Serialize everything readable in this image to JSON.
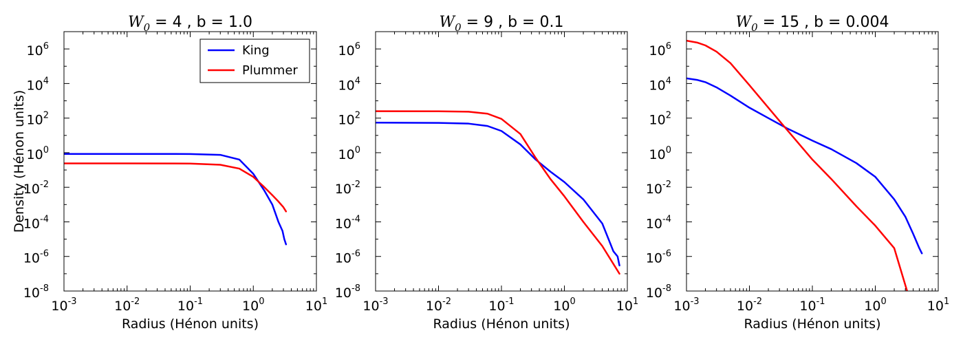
{
  "chart_data": [
    {
      "type": "line",
      "title": {
        "symbol": "W",
        "subscript": "0",
        "rest": " = 4 , b = 1.0"
      },
      "xlabel": "Radius (Hénon units)",
      "ylabel": "Density (Hénon units)",
      "xscale": "log",
      "yscale": "log",
      "xlim": [
        0.001,
        10
      ],
      "ylim": [
        1e-08,
        10000000.0
      ],
      "x_ticks": [
        {
          "base": "10",
          "exp": "-3",
          "value": 0.001
        },
        {
          "base": "10",
          "exp": "-2",
          "value": 0.01
        },
        {
          "base": "10",
          "exp": "-1",
          "value": 0.1
        },
        {
          "base": "10",
          "exp": "0",
          "value": 1
        },
        {
          "base": "10",
          "exp": "1",
          "value": 10
        }
      ],
      "y_ticks": [
        {
          "base": "10",
          "exp": "-8",
          "value": 1e-08
        },
        {
          "base": "10",
          "exp": "-6",
          "value": 1e-06
        },
        {
          "base": "10",
          "exp": "-4",
          "value": 0.0001
        },
        {
          "base": "10",
          "exp": "-2",
          "value": 0.01
        },
        {
          "base": "10",
          "exp": "0",
          "value": 1
        },
        {
          "base": "10",
          "exp": "2",
          "value": 100
        },
        {
          "base": "10",
          "exp": "4",
          "value": 10000
        },
        {
          "base": "10",
          "exp": "6",
          "value": 1000000
        }
      ],
      "legend": {
        "position": "top-right",
        "entries": [
          "King",
          "Plummer"
        ]
      },
      "series": [
        {
          "name": "King",
          "color": "#0000ff",
          "x": [
            0.001,
            0.01,
            0.1,
            0.3,
            0.6,
            1.0,
            1.5,
            2.0,
            2.5,
            2.9,
            3.1,
            3.3
          ],
          "y": [
            0.85,
            0.85,
            0.84,
            0.75,
            0.4,
            0.06,
            0.0063,
            0.001,
            0.0001,
            3e-05,
            1e-05,
            5e-06
          ]
        },
        {
          "name": "Plummer",
          "color": "#ff0000",
          "x": [
            0.001,
            0.01,
            0.1,
            0.3,
            0.6,
            1.0,
            1.5,
            2.0,
            2.5,
            3.0,
            3.3
          ],
          "y": [
            0.24,
            0.24,
            0.235,
            0.2,
            0.12,
            0.04,
            0.01,
            0.0035,
            0.0015,
            0.0007,
            0.0004
          ]
        }
      ]
    },
    {
      "type": "line",
      "title": {
        "symbol": "W",
        "subscript": "0",
        "rest": " = 9 , b = 0.1"
      },
      "xlabel": "Radius (Hénon units)",
      "ylabel": "",
      "xscale": "log",
      "yscale": "log",
      "xlim": [
        0.001,
        10
      ],
      "ylim": [
        1e-08,
        10000000.0
      ],
      "x_ticks": [
        {
          "base": "10",
          "exp": "-3",
          "value": 0.001
        },
        {
          "base": "10",
          "exp": "-2",
          "value": 0.01
        },
        {
          "base": "10",
          "exp": "-1",
          "value": 0.1
        },
        {
          "base": "10",
          "exp": "0",
          "value": 1
        },
        {
          "base": "10",
          "exp": "1",
          "value": 10
        }
      ],
      "y_ticks": [
        {
          "base": "10",
          "exp": "-8",
          "value": 1e-08
        },
        {
          "base": "10",
          "exp": "-6",
          "value": 1e-06
        },
        {
          "base": "10",
          "exp": "-4",
          "value": 0.0001
        },
        {
          "base": "10",
          "exp": "-2",
          "value": 0.01
        },
        {
          "base": "10",
          "exp": "0",
          "value": 1
        },
        {
          "base": "10",
          "exp": "2",
          "value": 100
        },
        {
          "base": "10",
          "exp": "4",
          "value": 10000
        },
        {
          "base": "10",
          "exp": "6",
          "value": 1000000
        }
      ],
      "series": [
        {
          "name": "King",
          "color": "#0000ff",
          "x": [
            0.001,
            0.01,
            0.03,
            0.06,
            0.1,
            0.2,
            0.35,
            0.6,
            1.0,
            2.0,
            4.0,
            6.0,
            7.0,
            7.5
          ],
          "y": [
            55,
            53,
            48,
            35,
            18,
            3,
            0.4,
            0.08,
            0.02,
            0.002,
            8e-05,
            2e-06,
            1e-06,
            3e-07
          ]
        },
        {
          "name": "Plummer",
          "color": "#ff0000",
          "x": [
            0.001,
            0.01,
            0.03,
            0.06,
            0.1,
            0.2,
            0.35,
            0.6,
            1.0,
            2.0,
            4.0,
            7.5
          ],
          "y": [
            250,
            248,
            235,
            180,
            90,
            12,
            0.5,
            0.03,
            0.003,
            0.0001,
            4e-06,
            1e-07
          ]
        }
      ]
    },
    {
      "type": "line",
      "title": {
        "symbol": "W",
        "subscript": "0",
        "rest": " = 15 , b = 0.004"
      },
      "xlabel": "Radius (Hénon units)",
      "ylabel": "",
      "xscale": "log",
      "yscale": "log",
      "xlim": [
        0.001,
        10
      ],
      "ylim": [
        1e-08,
        10000000.0
      ],
      "x_ticks": [
        {
          "base": "10",
          "exp": "-3",
          "value": 0.001
        },
        {
          "base": "10",
          "exp": "-2",
          "value": 0.01
        },
        {
          "base": "10",
          "exp": "-1",
          "value": 0.1
        },
        {
          "base": "10",
          "exp": "0",
          "value": 1
        },
        {
          "base": "10",
          "exp": "1",
          "value": 10
        }
      ],
      "y_ticks": [
        {
          "base": "10",
          "exp": "-8",
          "value": 1e-08
        },
        {
          "base": "10",
          "exp": "-6",
          "value": 1e-06
        },
        {
          "base": "10",
          "exp": "-4",
          "value": 0.0001
        },
        {
          "base": "10",
          "exp": "-2",
          "value": 0.01
        },
        {
          "base": "10",
          "exp": "0",
          "value": 1
        },
        {
          "base": "10",
          "exp": "2",
          "value": 100
        },
        {
          "base": "10",
          "exp": "4",
          "value": 10000
        },
        {
          "base": "10",
          "exp": "6",
          "value": 1000000
        }
      ],
      "series": [
        {
          "name": "King",
          "color": "#0000ff",
          "x": [
            0.001,
            0.0015,
            0.002,
            0.003,
            0.005,
            0.01,
            0.02,
            0.04,
            0.1,
            0.2,
            0.5,
            1.0,
            2.0,
            3.0,
            4.0,
            5.0,
            5.5
          ],
          "y": [
            20000,
            16000,
            12000,
            6000,
            2000,
            400,
            100,
            25,
            5,
            1.6,
            0.25,
            0.04,
            0.002,
            0.0002,
            2e-05,
            3e-06,
            1.5e-06
          ]
        },
        {
          "name": "Plummer",
          "color": "#ff0000",
          "x": [
            0.001,
            0.0015,
            0.002,
            0.003,
            0.005,
            0.01,
            0.02,
            0.04,
            0.1,
            0.2,
            0.5,
            1.0,
            2.0,
            3.2
          ],
          "y": [
            3000000,
            2300000,
            1600000,
            700000,
            150000,
            8000,
            400,
            20,
            0.4,
            0.03,
            0.0008,
            6e-05,
            3e-06,
            1e-08
          ]
        }
      ]
    }
  ]
}
